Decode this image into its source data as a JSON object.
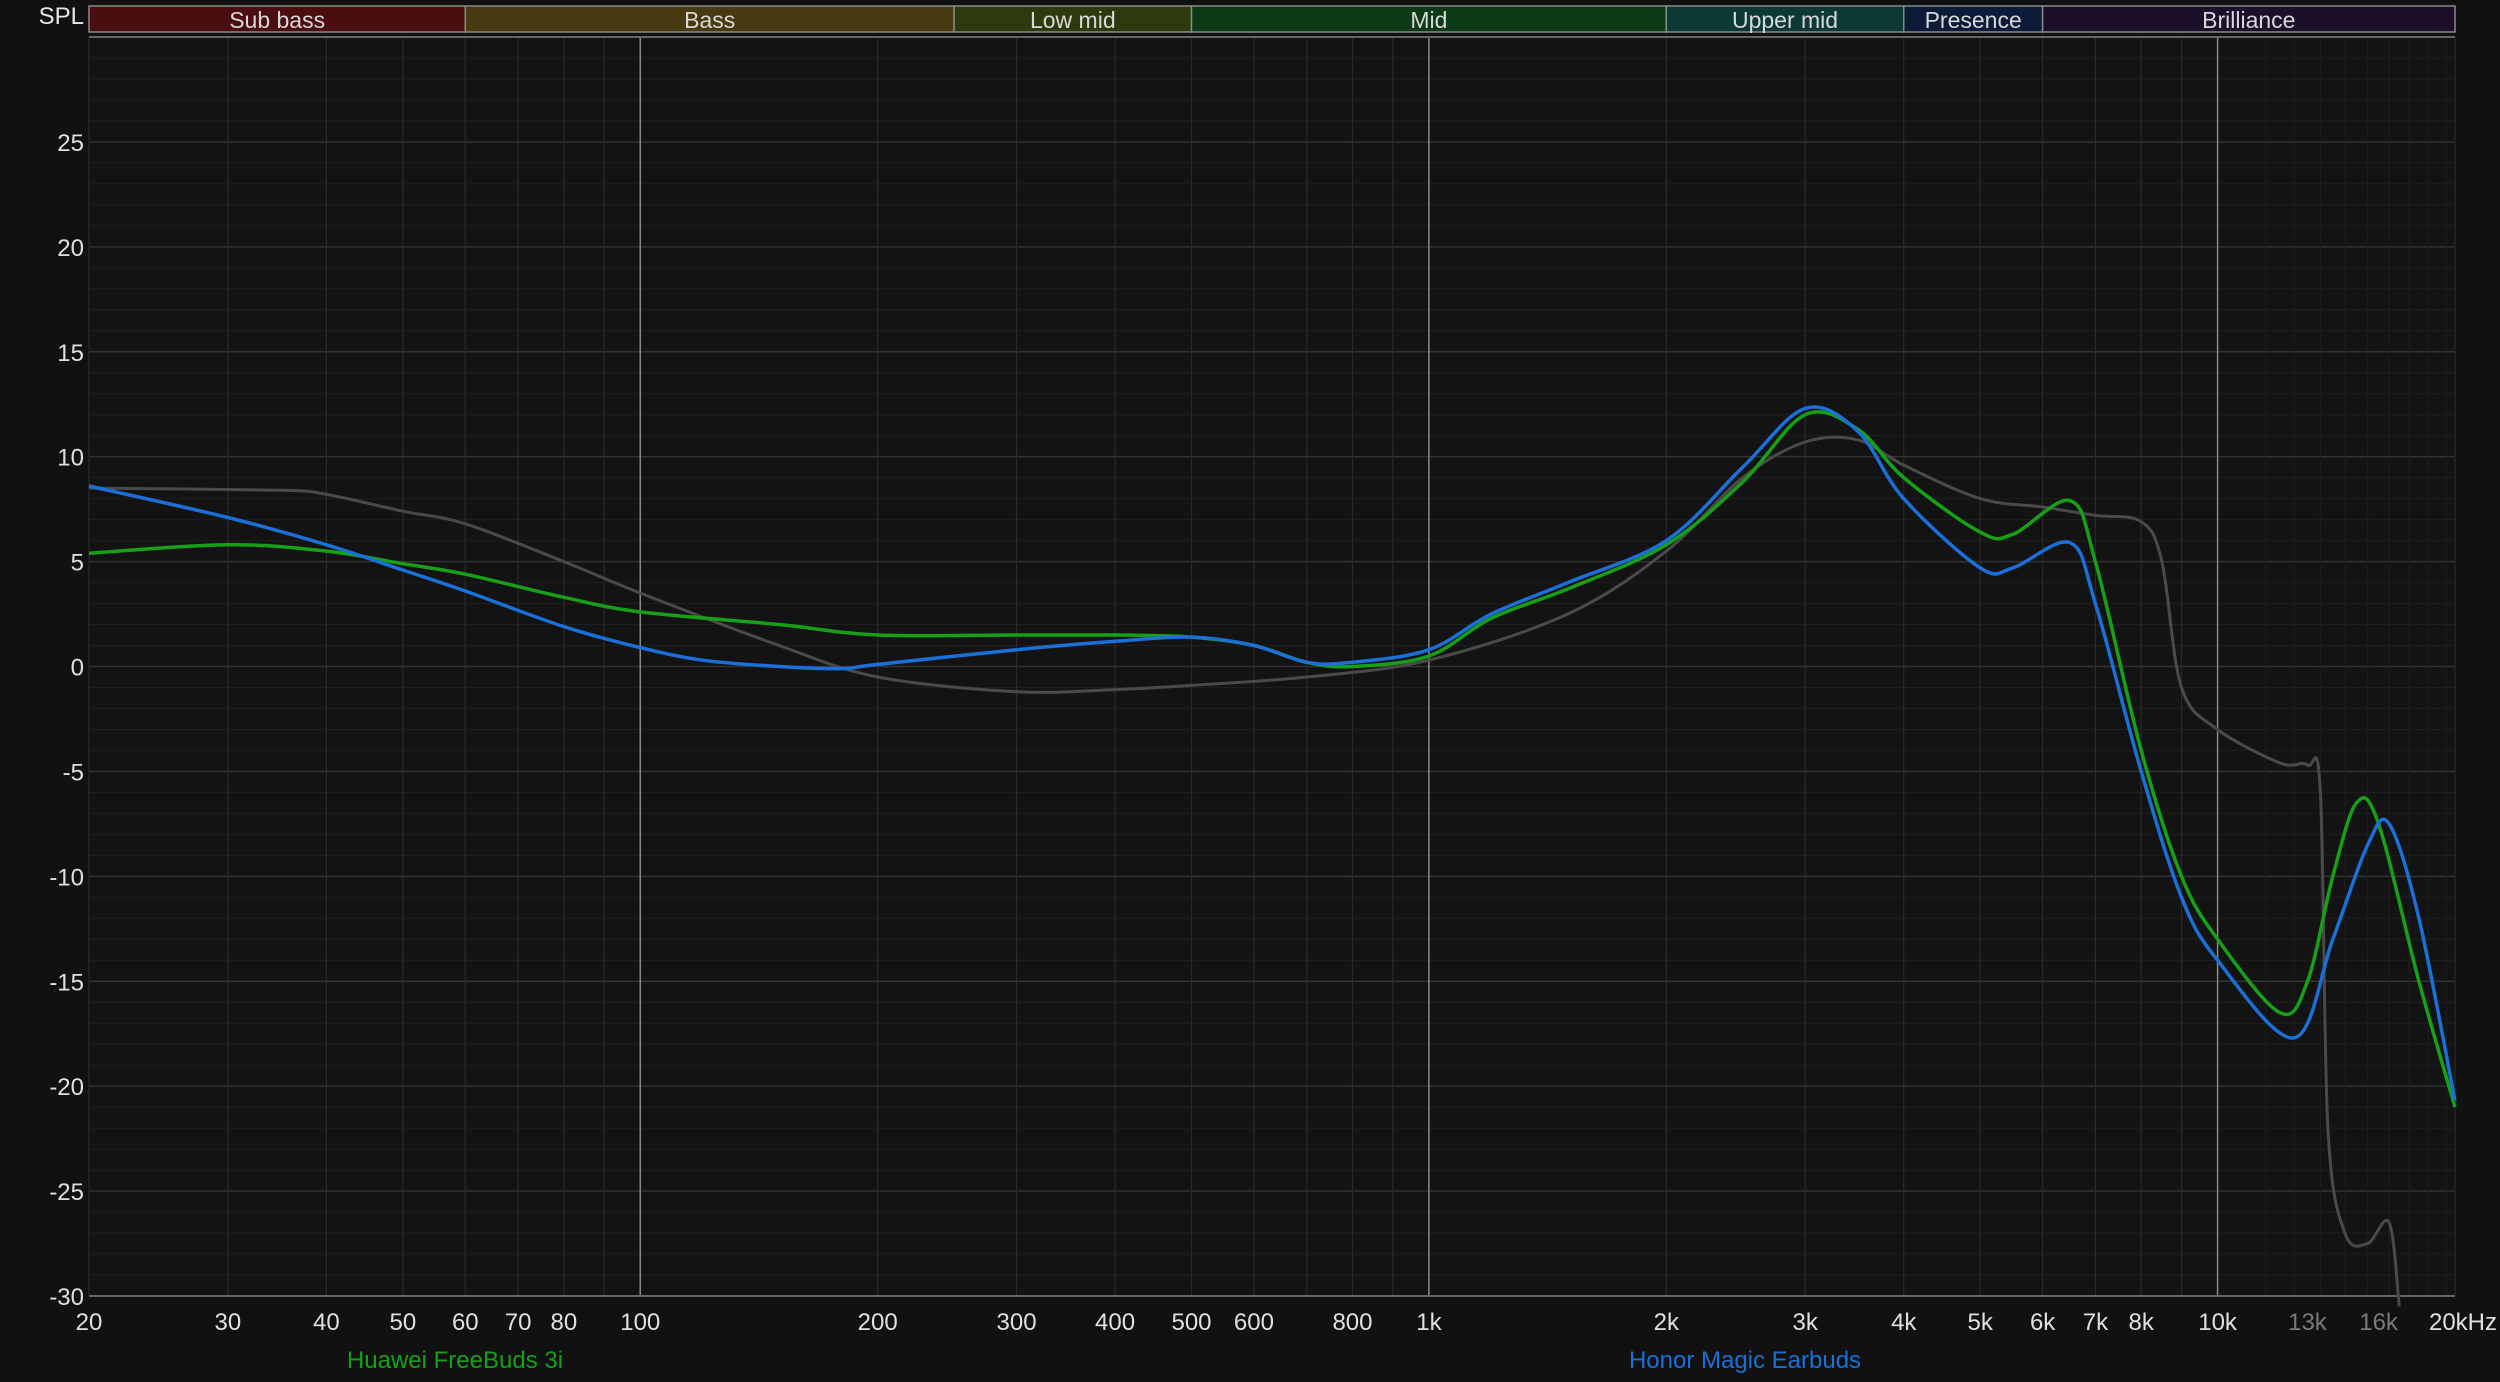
{
  "chart_data": {
    "type": "line",
    "ylabel": "SPL",
    "xunit": "kHz",
    "x_scale": "log",
    "xlim": [
      20,
      20000
    ],
    "ylim": [
      -30,
      30
    ],
    "grid": true,
    "legend_placement": "bottom",
    "y_ticks": [
      25,
      20,
      15,
      10,
      5,
      0,
      -5,
      -10,
      -15,
      -20,
      -25,
      -30
    ],
    "x_ticks": [
      {
        "f": 20,
        "label": "20"
      },
      {
        "f": 30,
        "label": "30"
      },
      {
        "f": 40,
        "label": "40"
      },
      {
        "f": 50,
        "label": "50"
      },
      {
        "f": 60,
        "label": "60"
      },
      {
        "f": 70,
        "label": "70"
      },
      {
        "f": 80,
        "label": "80"
      },
      {
        "f": 100,
        "label": "100"
      },
      {
        "f": 200,
        "label": "200"
      },
      {
        "f": 300,
        "label": "300"
      },
      {
        "f": 400,
        "label": "400"
      },
      {
        "f": 500,
        "label": "500"
      },
      {
        "f": 600,
        "label": "600"
      },
      {
        "f": 800,
        "label": "800"
      },
      {
        "f": 1000,
        "label": "1k"
      },
      {
        "f": 2000,
        "label": "2k"
      },
      {
        "f": 3000,
        "label": "3k"
      },
      {
        "f": 4000,
        "label": "4k"
      },
      {
        "f": 5000,
        "label": "5k"
      },
      {
        "f": 6000,
        "label": "6k"
      },
      {
        "f": 7000,
        "label": "7k"
      },
      {
        "f": 8000,
        "label": "8k"
      },
      {
        "f": 10000,
        "label": "10k"
      },
      {
        "f": 13000,
        "label": "13k",
        "dim": true
      },
      {
        "f": 16000,
        "label": "16k",
        "dim": true
      },
      {
        "f": 20000,
        "label": "20kHz"
      }
    ],
    "bands": [
      {
        "label": "Sub bass",
        "from": 20,
        "to": 60,
        "color": "#4a0d10"
      },
      {
        "label": "Bass",
        "from": 60,
        "to": 250,
        "color": "#483a10"
      },
      {
        "label": "Low mid",
        "from": 250,
        "to": 500,
        "color": "#2e3a0e"
      },
      {
        "label": "Mid",
        "from": 500,
        "to": 2000,
        "color": "#0d3a16"
      },
      {
        "label": "Upper mid",
        "from": 2000,
        "to": 4000,
        "color": "#0c3836"
      },
      {
        "label": "Presence",
        "from": 4000,
        "to": 6000,
        "color": "#0b1b38"
      },
      {
        "label": "Brilliance",
        "from": 6000,
        "to": 20000,
        "color": "#1c0f2a"
      }
    ],
    "series": [
      {
        "color": "#4a4a4a",
        "x": [
          20,
          35,
          40,
          50,
          60,
          80,
          100,
          150,
          200,
          300,
          400,
          500,
          700,
          1000,
          1500,
          2000,
          2500,
          3000,
          3500,
          4000,
          5000,
          6000,
          7000,
          8000,
          8500,
          9000,
          10000,
          12000,
          13000,
          13500,
          13800,
          14500,
          15500,
          16500,
          17000
        ],
        "y": [
          8.5,
          8.4,
          8.2,
          7.4,
          6.8,
          5,
          3.5,
          1.0,
          -0.5,
          -1.2,
          -1.1,
          -0.9,
          -0.5,
          0.3,
          2.5,
          5.5,
          9.0,
          10.7,
          10.8,
          9.6,
          8.0,
          7.6,
          7.2,
          6.9,
          5,
          -1,
          -3,
          -4.6,
          -4.7,
          -6,
          -22,
          -27,
          -27.5,
          -26.5,
          -30.5
        ]
      },
      {
        "name": "Huawei FreeBuds 3i",
        "color": "#17a017",
        "x": [
          20,
          30,
          40,
          50,
          60,
          80,
          100,
          150,
          200,
          300,
          400,
          500,
          600,
          700,
          800,
          1000,
          1200,
          1500,
          2000,
          2500,
          3000,
          3500,
          4000,
          5000,
          5500,
          6500,
          7000,
          8000,
          9000,
          10000,
          12000,
          13000,
          14000,
          15000,
          16000,
          18000,
          20000
        ],
        "y": [
          5.4,
          5.8,
          5.5,
          4.9,
          4.4,
          3.3,
          2.6,
          2.0,
          1.5,
          1.5,
          1.5,
          1.4,
          1.0,
          0.2,
          0.0,
          0.5,
          2.3,
          3.7,
          5.8,
          8.8,
          12.0,
          11.3,
          9.0,
          6.4,
          6.3,
          7.9,
          5,
          -4,
          -10,
          -13,
          -16.5,
          -15,
          -10,
          -6.5,
          -7.5,
          -15,
          -21
        ]
      },
      {
        "name": "Honor Magic Earbuds",
        "color": "#1a70d8",
        "x": [
          20,
          30,
          40,
          50,
          60,
          80,
          100,
          120,
          150,
          180,
          200,
          300,
          400,
          500,
          600,
          700,
          800,
          1000,
          1200,
          1500,
          2000,
          2500,
          3000,
          3500,
          4000,
          5000,
          5500,
          6500,
          7000,
          8000,
          9000,
          10000,
          12500,
          14000,
          15500,
          16500,
          18000,
          20000
        ],
        "y": [
          8.6,
          7.1,
          5.8,
          4.6,
          3.6,
          1.9,
          0.9,
          0.3,
          0,
          -0.1,
          0.1,
          0.8,
          1.2,
          1.4,
          1.0,
          0.2,
          0.2,
          0.8,
          2.5,
          4,
          6,
          9.5,
          12.3,
          11.2,
          8.0,
          4.7,
          4.7,
          5.9,
          3,
          -5,
          -11,
          -14,
          -17.7,
          -13,
          -8.5,
          -7.5,
          -12,
          -20.7
        ]
      }
    ]
  }
}
